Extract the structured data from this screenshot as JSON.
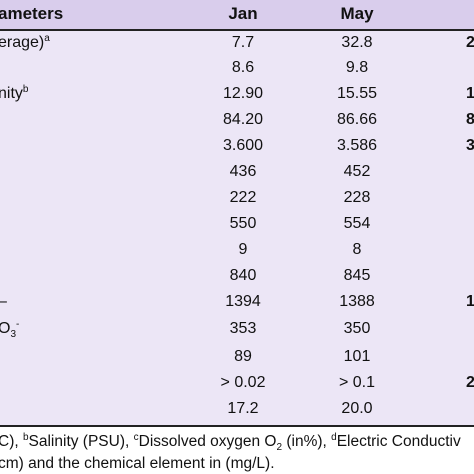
{
  "header": {
    "parameter": "ameters",
    "jan": "Jan",
    "may": "May"
  },
  "table": {
    "rows": [
      {
        "label": "erage)",
        "sup": "a",
        "jan": "7.7",
        "may": "32.8",
        "next": "2"
      },
      {
        "jan": "8.6",
        "may": "9.8"
      },
      {
        "label": "nity",
        "sup": "b",
        "jan": "12.90",
        "may": "15.55",
        "next": "1"
      },
      {
        "jan": "84.20",
        "may": "86.66",
        "next": "8"
      },
      {
        "jan": "3.600",
        "may": "3.586",
        "next": "3"
      },
      {
        "jan": "436",
        "may": "452"
      },
      {
        "jan": "222",
        "may": "228"
      },
      {
        "jan": "550",
        "may": "554"
      },
      {
        "jan": "9",
        "may": "8"
      },
      {
        "jan": "840",
        "may": "845"
      },
      {
        "label": "–",
        "jan": "1394",
        "may": "1388",
        "next": "1"
      },
      {
        "label": "O",
        "sub": "3",
        "sup": "-",
        "jan": "353",
        "may": "350"
      },
      {
        "jan": "89",
        "may": "101"
      },
      {
        "jan": "> 0.02",
        "may": "> 0.1",
        "next": "2"
      },
      {
        "jan": "17.2",
        "may": "20.0"
      }
    ]
  },
  "footer": {
    "lines": [
      [
        {
          "t": "C), "
        },
        {
          "sup": "b"
        },
        {
          "t": "Salinity (PSU), "
        },
        {
          "sup": "c"
        },
        {
          "t": "Dissolved oxygen O"
        },
        {
          "sub": "2"
        },
        {
          "t": " (in%), "
        },
        {
          "sup": "d"
        },
        {
          "t": "Electric Conductiv"
        }
      ],
      [
        {
          "t": "cm) and the chemical element in (mg/L)."
        }
      ]
    ]
  }
}
